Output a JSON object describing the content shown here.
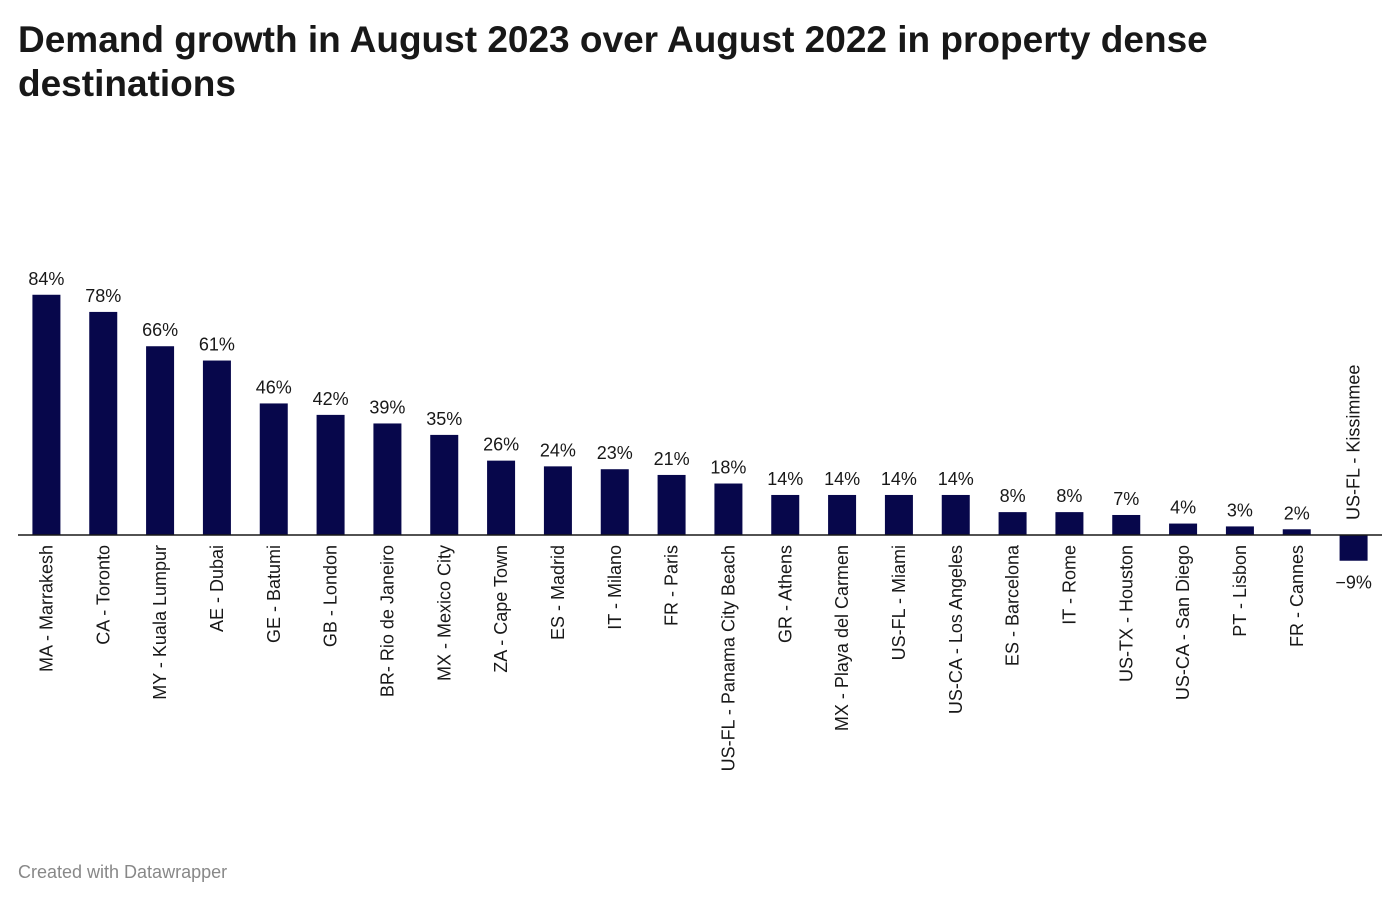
{
  "chart_data": {
    "type": "bar",
    "title": "Demand growth in August 2023 over August 2022 in property dense destinations",
    "xlabel": "",
    "ylabel": "",
    "value_suffix": "%",
    "bar_color": "#07074b",
    "categories": [
      "MA - Marrakesh",
      "CA - Toronto",
      "MY - Kuala Lumpur",
      "AE - Dubai",
      "GE - Batumi",
      "GB - London",
      "BR- Rio de Janeiro",
      "MX - Mexico City",
      "ZA - Cape Town",
      "ES - Madrid",
      "IT - Milano",
      "FR - Paris",
      "US-FL - Panama City Beach",
      "GR - Athens",
      "MX - Playa del Carmen",
      "US-FL - Miami",
      "US-CA - Los Angeles",
      "ES - Barcelona",
      "IT - Rome",
      "US-TX - Houston",
      "US-CA - San Diego",
      "PT - Lisbon",
      "FR - Cannes",
      "US-FL - Kissimmee"
    ],
    "values": [
      84,
      78,
      66,
      61,
      46,
      42,
      39,
      35,
      26,
      24,
      23,
      21,
      18,
      14,
      14,
      14,
      14,
      8,
      8,
      7,
      4,
      3,
      2,
      -9
    ],
    "value_labels": [
      "84%",
      "78%",
      "66%",
      "61%",
      "46%",
      "42%",
      "39%",
      "35%",
      "26%",
      "24%",
      "23%",
      "21%",
      "18%",
      "14%",
      "14%",
      "14%",
      "14%",
      "8%",
      "8%",
      "7%",
      "4%",
      "3%",
      "2%",
      "−9%"
    ],
    "grid": false,
    "legend": "none"
  },
  "footer": {
    "credit": "Created with Datawrapper"
  }
}
